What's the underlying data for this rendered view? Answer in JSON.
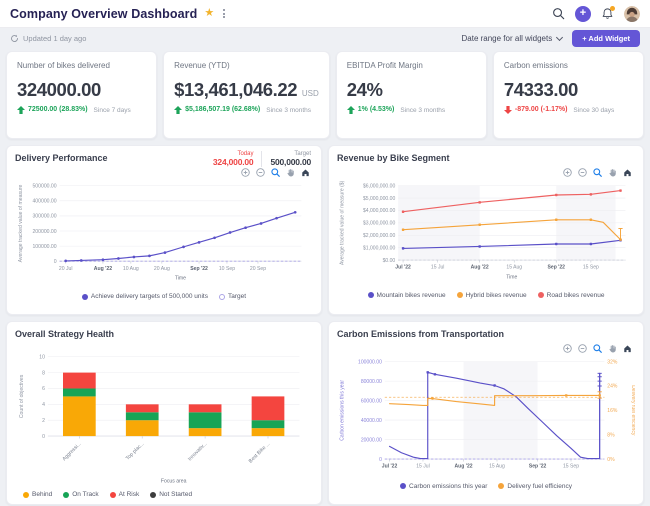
{
  "header": {
    "title": "Company Overview Dashboard",
    "updated": "Updated 1 day ago",
    "date_range_label": "Date range for all widgets",
    "add_widget_label": "+ Add Widget"
  },
  "colors": {
    "accent_purple": "#6456d6",
    "positive_green": "#1da45a",
    "negative_red": "#ee4545",
    "line_purple": "#5a50c8",
    "line_orange": "#f5a43b",
    "line_red": "#ee6161"
  },
  "kpis": [
    {
      "title": "Number of bikes delivered",
      "value": "324000.00",
      "unit": "",
      "change": "72500.00 (28.83%)",
      "change_dir": "up",
      "period": "Since 7 days"
    },
    {
      "title": "Revenue (YTD)",
      "value": "$13,461,046.22",
      "unit": "USD",
      "change": "$5,186,507.19 (62.68%)",
      "change_dir": "up",
      "period": "Since 3 months"
    },
    {
      "title": "EBITDA Profit Margin",
      "value": "24%",
      "unit": "",
      "change": "1% (4.53%)",
      "change_dir": "up",
      "period": "Since 3 months"
    },
    {
      "title": "Carbon emissions",
      "value": "74333.00",
      "unit": "",
      "change": "-879.00 (-1.17%)",
      "change_dir": "down",
      "period": "Since 30 days"
    }
  ],
  "chart_data": [
    {
      "id": "delivery",
      "type": "line",
      "title": "Delivery Performance",
      "today_label": "Today",
      "today_value": "324,000.00",
      "target_label": "Target",
      "target_value": "500,000.00",
      "xlabel": "Time",
      "ylabel": "Average tracked value of measure",
      "ylim": [
        0,
        500000
      ],
      "yticks": [
        {
          "value": 0,
          "label": "0"
        },
        {
          "value": 100000,
          "label": "100000.00"
        },
        {
          "value": 200000,
          "label": "200000.00"
        },
        {
          "value": 300000,
          "label": "300000.00"
        },
        {
          "value": 400000,
          "label": "400000.00"
        },
        {
          "value": 500000,
          "label": "500000.00"
        }
      ],
      "xlim": [
        -2,
        76
      ],
      "xticks": [
        {
          "pos": 0,
          "label": "20 Jul"
        },
        {
          "pos": 12,
          "label": "Aug '22",
          "bold": true
        },
        {
          "pos": 21,
          "label": "10 Aug"
        },
        {
          "pos": 31,
          "label": "20 Aug"
        },
        {
          "pos": 43,
          "label": "Sep '22",
          "bold": true
        },
        {
          "pos": 52,
          "label": "10 Sep"
        },
        {
          "pos": 62,
          "label": "20 Sep"
        }
      ],
      "dashes": [
        {
          "axis": "left",
          "y": 0,
          "color": "#aca5e6"
        }
      ],
      "series": [
        {
          "name": "Achieve delivery targets of 500,000 units",
          "color": "#5a50c8",
          "marker_all": true,
          "marker_shape": "circle",
          "x": [
            0,
            5,
            12,
            17,
            22,
            27,
            32,
            38,
            43,
            48,
            53,
            58,
            63,
            68,
            74
          ],
          "y": [
            2000,
            5000,
            10000,
            18000,
            28000,
            35000,
            57000,
            95000,
            125000,
            155000,
            190000,
            222000,
            250000,
            285000,
            324000
          ]
        }
      ],
      "legend": [
        {
          "label": "Achieve delivery targets of 500,000 units",
          "color": "#5a50c8",
          "filled": true
        },
        {
          "label": "Target",
          "color": "#aca5e6",
          "filled": false
        }
      ]
    },
    {
      "id": "revenue",
      "type": "line",
      "title": "Revenue by Bike Segment",
      "xlabel": "Time",
      "ylabel": "Average tracked value of measure ($)",
      "ylim": [
        0,
        6000000
      ],
      "yticks": [
        {
          "value": 0,
          "label": "$0.00"
        },
        {
          "value": 1000000,
          "label": "$1,000,000.00"
        },
        {
          "value": 2000000,
          "label": "$2,000,000.00"
        },
        {
          "value": 3000000,
          "label": "$3,000,000.00"
        },
        {
          "value": 4000000,
          "label": "$4,000,000.00"
        },
        {
          "value": 5000000,
          "label": "$5,000,000.00"
        },
        {
          "value": 6000000,
          "label": "$6,000,000.00"
        }
      ],
      "xlim": [
        -2,
        90
      ],
      "xticks": [
        {
          "pos": 0,
          "label": "Jul '22",
          "bold": true
        },
        {
          "pos": 14,
          "label": "15 Jul"
        },
        {
          "pos": 31,
          "label": "Aug '22",
          "bold": true
        },
        {
          "pos": 45,
          "label": "15 Aug"
        },
        {
          "pos": 62,
          "label": "Sep '22",
          "bold": true
        },
        {
          "pos": 76,
          "label": "15 Sep"
        }
      ],
      "bands": [
        [
          -2,
          31
        ],
        [
          62,
          86
        ]
      ],
      "dashes": [
        {
          "axis": "left",
          "y": 0,
          "color": "#c6c9d4"
        }
      ],
      "series": [
        {
          "name": "Mountain bikes revenue",
          "color": "#5a50c8",
          "x": [
            0,
            31,
            62,
            76,
            88
          ],
          "y": [
            950000,
            1100000,
            1300000,
            1300000,
            1600000
          ],
          "markers": [
            [
              0,
              950000
            ],
            [
              31,
              1100000
            ],
            [
              62,
              1300000
            ],
            [
              76,
              1300000
            ],
            [
              88,
              1600000
            ]
          ]
        },
        {
          "name": "Hybrid bikes revenue",
          "color": "#f5a43b",
          "x": [
            0,
            31,
            62,
            76,
            81,
            88
          ],
          "y": [
            2450000,
            2850000,
            3250000,
            3250000,
            3050000,
            1650000
          ],
          "markers": [
            [
              0,
              2450000
            ],
            [
              31,
              2850000
            ],
            [
              62,
              3250000
            ],
            [
              76,
              3250000
            ],
            [
              88,
              1650000
            ]
          ],
          "whiskers": [
            {
              "x": 88,
              "y1": 1650000,
              "y2": 2550000,
              "caps": [
                2550000
              ]
            }
          ]
        },
        {
          "name": "Road bikes revenue",
          "color": "#ee6161",
          "x": [
            0,
            31,
            62,
            76,
            88
          ],
          "y": [
            3900000,
            4650000,
            5250000,
            5300000,
            5600000
          ],
          "markers": [
            [
              0,
              3900000
            ],
            [
              31,
              4650000
            ],
            [
              62,
              5250000
            ],
            [
              76,
              5300000
            ],
            [
              88,
              5600000
            ]
          ]
        }
      ],
      "legend": [
        {
          "label": "Mountain bikes revenue",
          "color": "#5a50c8",
          "filled": true
        },
        {
          "label": "Hybrid bikes revenue",
          "color": "#f5a43b",
          "filled": true
        },
        {
          "label": "Road bikes revenue",
          "color": "#ee6161",
          "filled": true
        }
      ]
    },
    {
      "id": "strategy",
      "type": "bar",
      "stacked": true,
      "title": "Overall Strategy Health",
      "xlabel": "Focus area",
      "ylabel": "Count of objectives",
      "ylim": [
        0,
        10
      ],
      "yticks": [
        {
          "value": 0,
          "label": "0"
        },
        {
          "value": 2,
          "label": "2"
        },
        {
          "value": 4,
          "label": "4"
        },
        {
          "value": 6,
          "label": "6"
        },
        {
          "value": 8,
          "label": "8"
        },
        {
          "value": 10,
          "label": "10"
        }
      ],
      "categories": [
        "Aggressi...",
        "Top plac...",
        "Innovativ...",
        "Best Bike ..."
      ],
      "series": [
        {
          "name": "Behind",
          "color": "#f9a806",
          "values": [
            5,
            2,
            1,
            1
          ]
        },
        {
          "name": "On Track",
          "color": "#17a456",
          "values": [
            1,
            1,
            2,
            1
          ]
        },
        {
          "name": "At Risk",
          "color": "#f4453f",
          "values": [
            2,
            1,
            1,
            3
          ]
        },
        {
          "name": "Not Started",
          "color": "#3d3d3d",
          "values": [
            0,
            0,
            0,
            0
          ]
        }
      ],
      "legend": [
        {
          "label": "Behind",
          "color": "#f9a806",
          "filled": true
        },
        {
          "label": "On Track",
          "color": "#17a456",
          "filled": true
        },
        {
          "label": "At Risk",
          "color": "#f4453f",
          "filled": true
        },
        {
          "label": "Not Started",
          "color": "#3d3d3d",
          "filled": true
        }
      ]
    },
    {
      "id": "carbon",
      "type": "line",
      "title": "Carbon Emissions from Transportation",
      "xlabel": "",
      "ylabel": "Carbon emissions this year",
      "ylabel_color": "#7d76d6",
      "ylabel_right": "Delivery fuel efficiency",
      "ylabel_right_color": "#f2a952",
      "ytick_color": "#8d87da",
      "ylim": [
        0,
        100000
      ],
      "yticks": [
        {
          "value": 0,
          "label": "0"
        },
        {
          "value": 20000,
          "label": "20000.00"
        },
        {
          "value": 40000,
          "label": "40000.00"
        },
        {
          "value": 60000,
          "label": "60000.00"
        },
        {
          "value": 80000,
          "label": "80000.00"
        },
        {
          "value": 100000,
          "label": "100000.00"
        }
      ],
      "ylim_right": [
        0,
        32
      ],
      "yticks_right": [
        {
          "value": 0,
          "label": "0%"
        },
        {
          "value": 8,
          "label": "8%"
        },
        {
          "value": 16,
          "label": "16%"
        },
        {
          "value": 24,
          "label": "24%"
        },
        {
          "value": 32,
          "label": "32%"
        }
      ],
      "xlim": [
        -2,
        90
      ],
      "xticks": [
        {
          "pos": 0,
          "label": "Jul '22",
          "bold": true
        },
        {
          "pos": 14,
          "label": "15 Jul"
        },
        {
          "pos": 31,
          "label": "Aug '22",
          "bold": true
        },
        {
          "pos": 45,
          "label": "15 Aug"
        },
        {
          "pos": 62,
          "label": "Sep '22",
          "bold": true
        },
        {
          "pos": 76,
          "label": "15 Sep"
        }
      ],
      "bands": [
        [
          31,
          62
        ]
      ],
      "dashes": [
        {
          "axis": "left",
          "y": 0,
          "color": "#a9a2ea"
        },
        {
          "axis": "right",
          "y": 20.3,
          "color": "#f6b25e"
        }
      ],
      "series": [
        {
          "name": "Carbon emissions this year",
          "color": "#5a50c8",
          "x": [
            0,
            5,
            10,
            13,
            16,
            16,
            19,
            28,
            38,
            44,
            48,
            53,
            58,
            64,
            70,
            76,
            80,
            83,
            88,
            88
          ],
          "y": [
            13000,
            6500,
            2000,
            500,
            500,
            89000,
            87000,
            83000,
            78000,
            75500,
            72000,
            64000,
            52000,
            38000,
            24000,
            11000,
            2000,
            500,
            500,
            88000
          ],
          "markers": [
            [
              16,
              89000
            ],
            [
              19,
              87000
            ],
            [
              44,
              75500
            ]
          ],
          "whiskers": [
            {
              "x": 88,
              "y1": 500,
              "y2": 88000,
              "caps": [
                75000,
                80000,
                84500,
                88000
              ]
            }
          ]
        },
        {
          "name": "Delivery fuel efficiency",
          "color": "#f5a43b",
          "axis": "right",
          "x": [
            0,
            8,
            14,
            16,
            16,
            18,
            28,
            38,
            44,
            44,
            60,
            74,
            88
          ],
          "y": [
            18.2,
            17.9,
            17.6,
            17.6,
            19.9,
            19.9,
            18.9,
            18.1,
            17.6,
            20.8,
            20.8,
            20.9,
            20.9
          ],
          "markers": [
            [
              18,
              19.9
            ],
            [
              74,
              20.9
            ],
            [
              88,
              20.9
            ]
          ],
          "whiskers": [
            {
              "x": 88,
              "y1": 20.0,
              "y2": 22.1,
              "caps": [
                20.0,
                22.1
              ]
            }
          ]
        }
      ],
      "legend": [
        {
          "label": "Carbon emissions this year",
          "color": "#5a50c8",
          "filled": true
        },
        {
          "label": "Delivery fuel efficiency",
          "color": "#f5a43b",
          "filled": true
        }
      ]
    }
  ]
}
